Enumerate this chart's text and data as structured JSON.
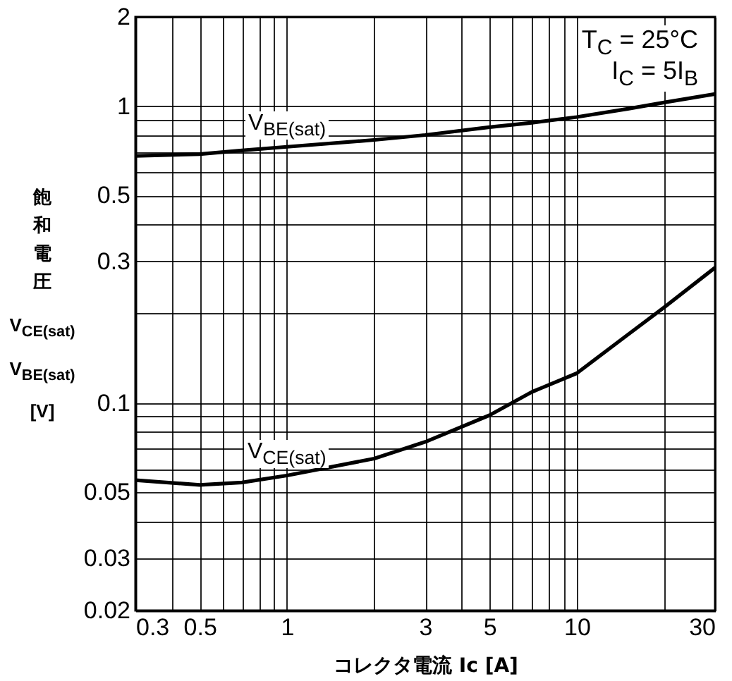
{
  "chart_data": {
    "type": "line",
    "xlabel": "コレクタ電流 Ic [A]",
    "ylabel": "飽和電圧\nV$_{CE(sat)}$\nV$_{BE(sat)}$\n[V]",
    "annotations": [
      "T$_{C}$ = 25°C",
      "I$_{C}$ = 5I$_{B}$"
    ],
    "x": [
      0.3,
      0.5,
      0.7,
      1,
      2,
      3,
      5,
      7,
      10,
      15,
      20,
      30
    ],
    "series": [
      {
        "name": "V$_{BE(sat)}$",
        "color": "#000000",
        "values": [
          0.68,
          0.69,
          0.71,
          0.73,
          0.77,
          0.8,
          0.85,
          0.88,
          0.92,
          0.98,
          1.03,
          1.1
        ]
      },
      {
        "name": "V$_{CE(sat)}$",
        "color": "#000000",
        "values": [
          0.055,
          0.053,
          0.054,
          0.057,
          0.065,
          0.074,
          0.091,
          0.109,
          0.126,
          0.17,
          0.21,
          0.286
        ]
      }
    ],
    "log": "xy",
    "xlim": [
      0.3,
      30
    ],
    "ylim": [
      0.02,
      2
    ],
    "xticks": [
      0.3,
      {
        "value": 0.4,
        "label": null
      },
      0.5,
      {
        "value": 0.6,
        "label": null
      },
      {
        "value": 0.7,
        "label": null
      },
      {
        "value": 0.8,
        "label": null
      },
      {
        "value": 0.9,
        "label": null
      },
      1,
      {
        "value": 2,
        "label": null
      },
      3,
      {
        "value": 4,
        "label": null
      },
      5,
      {
        "value": 6,
        "label": null
      },
      {
        "value": 7,
        "label": null
      },
      {
        "value": 8,
        "label": null
      },
      {
        "value": 9,
        "label": null
      },
      10,
      {
        "value": 20,
        "label": null
      },
      30
    ],
    "yticks": [
      0.02,
      0.03,
      {
        "value": 0.04,
        "label": null
      },
      0.05,
      {
        "value": 0.06,
        "label": null
      },
      {
        "value": 0.07,
        "label": null
      },
      {
        "value": 0.08,
        "label": null
      },
      {
        "value": 0.09,
        "label": null
      },
      0.1,
      {
        "value": 0.2,
        "label": null
      },
      0.3,
      {
        "value": 0.4,
        "label": null
      },
      0.5,
      {
        "value": 0.6,
        "label": null
      },
      {
        "value": 0.7,
        "label": null
      },
      {
        "value": 0.8,
        "label": null
      },
      {
        "value": 0.9,
        "label": null
      },
      1,
      2
    ],
    "grid": true,
    "marker": "none",
    "line_style": "solid"
  }
}
